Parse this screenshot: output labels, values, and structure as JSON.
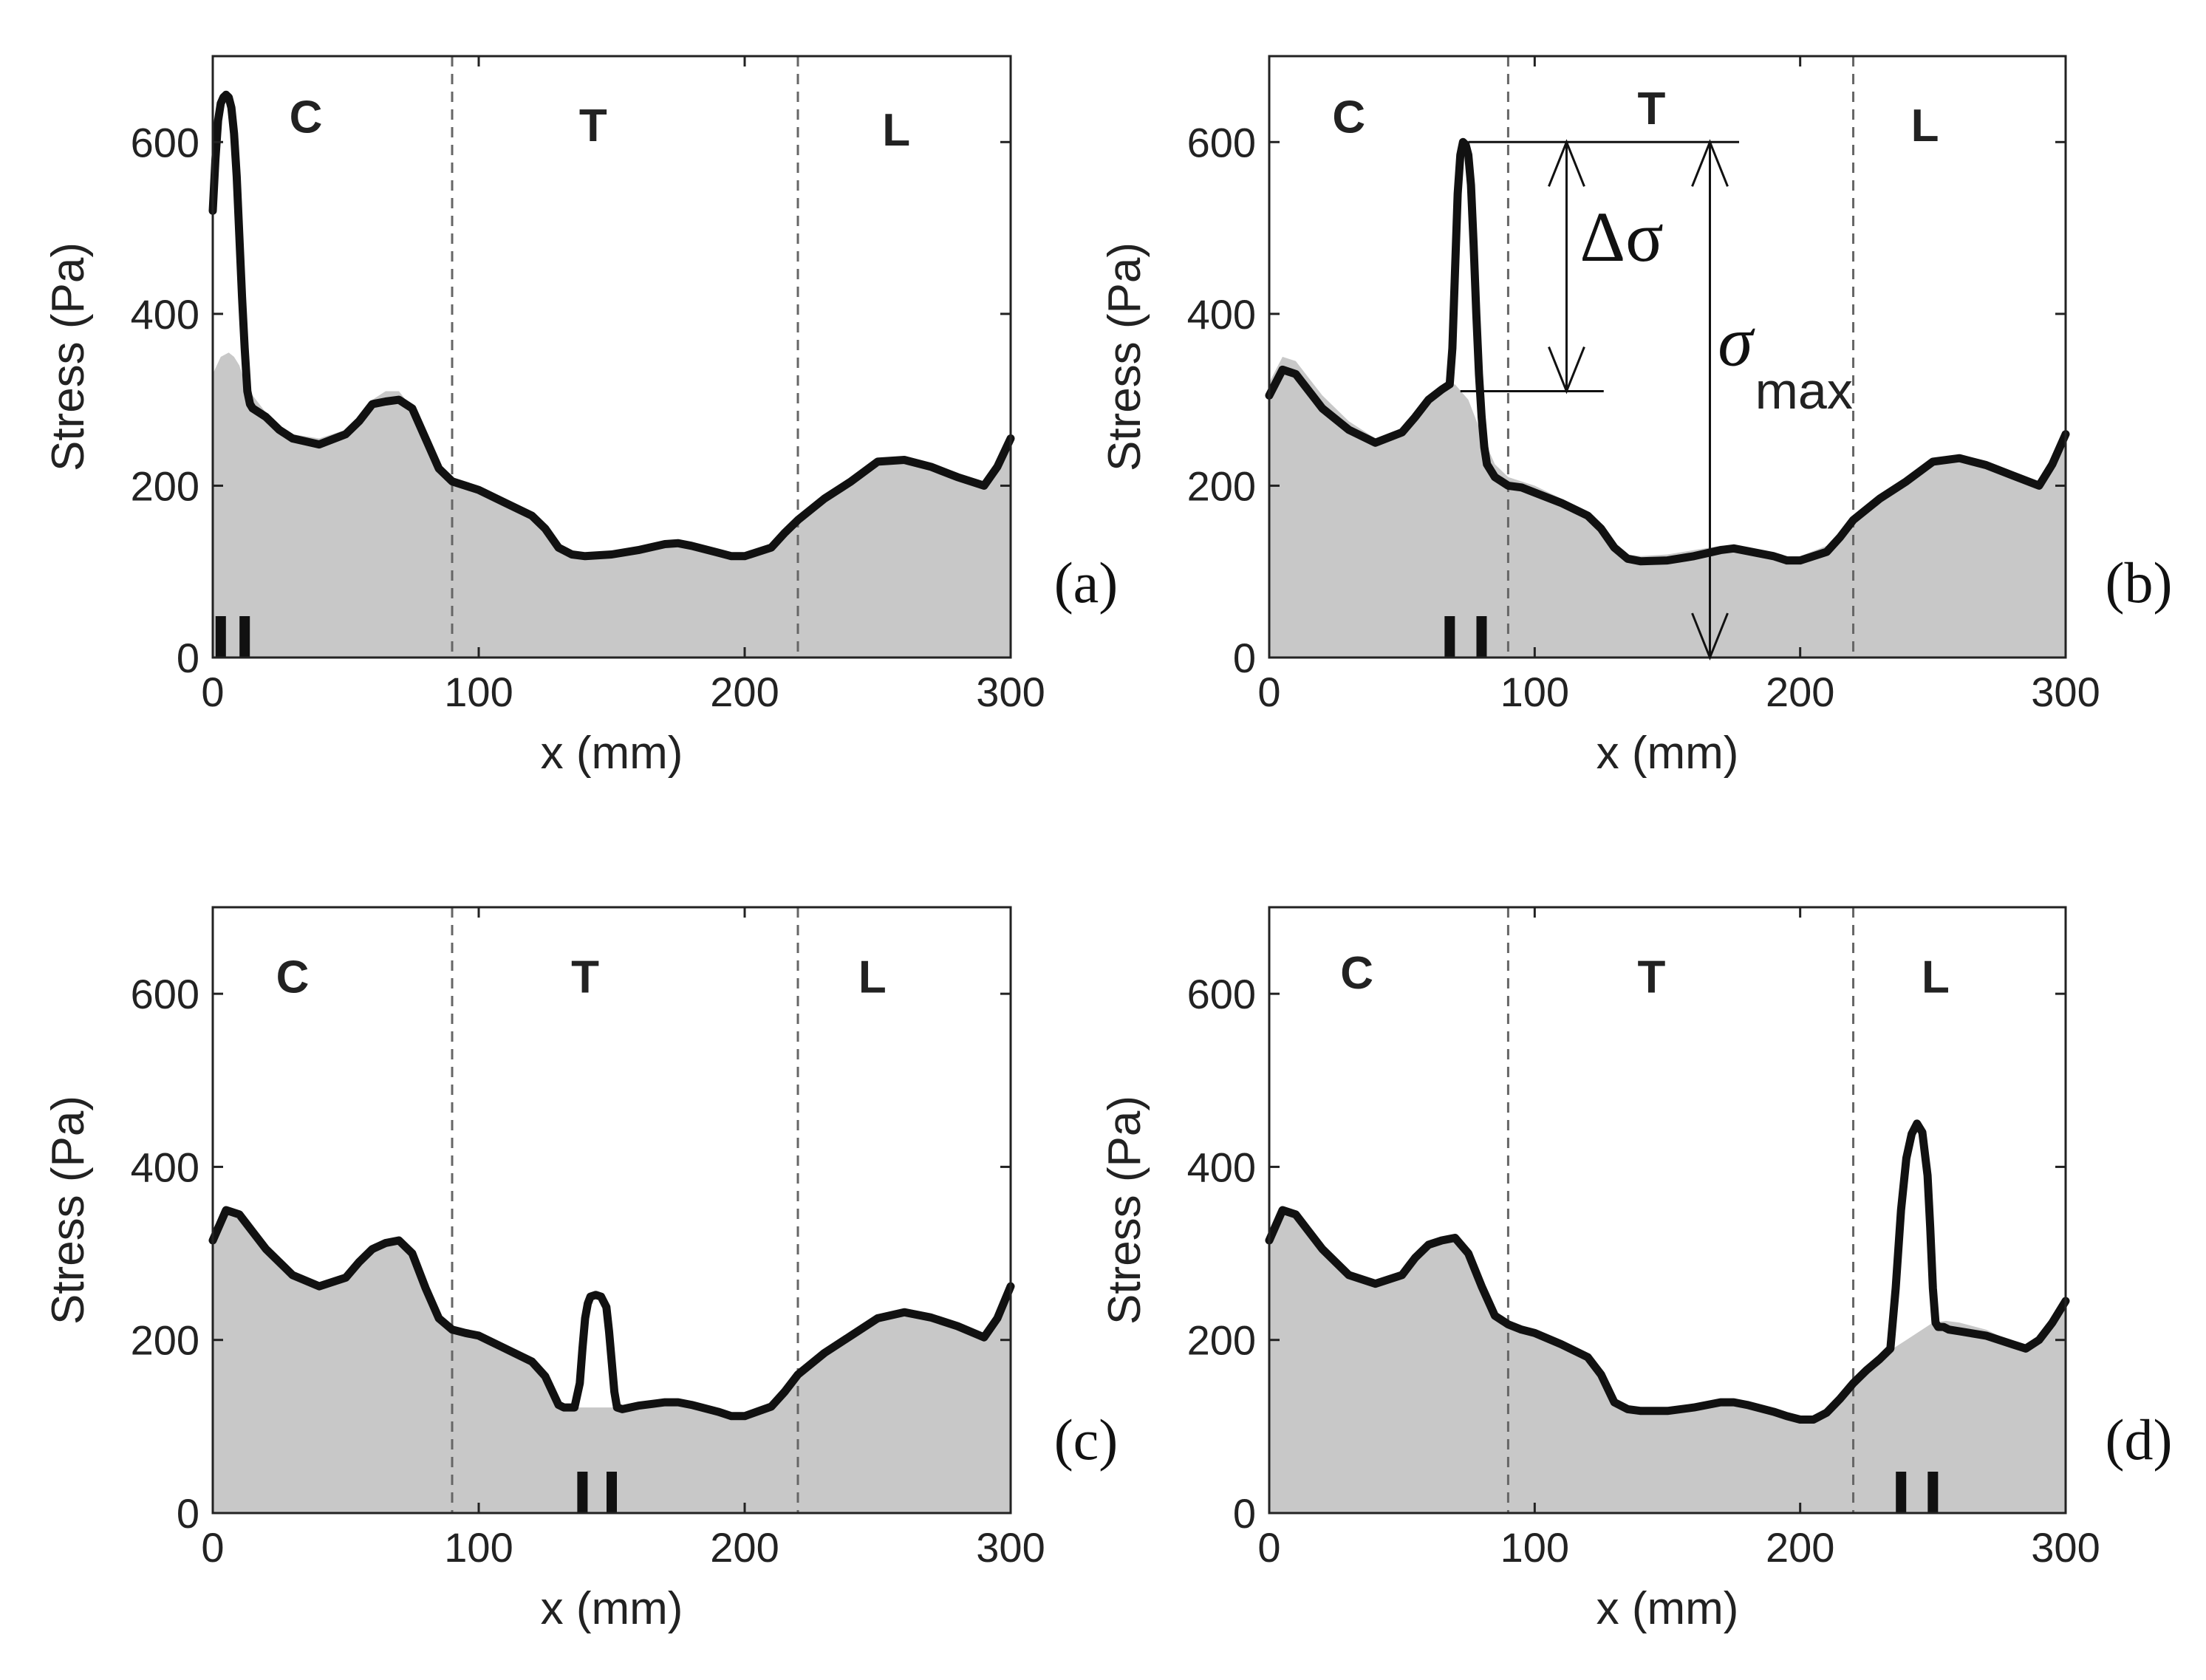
{
  "colors": {
    "curve": "#111111",
    "fill": "#c8c8c8",
    "divider": "#666666",
    "axes": "#222222"
  },
  "annotation": {
    "delta_symbol": "Δσ",
    "sigma_symbol": "σ",
    "sigma_subscript": "max",
    "delta_from": 310,
    "delta_to": 600,
    "sigma_from": 0,
    "sigma_to": 600
  },
  "chart_data": [
    {
      "type": "area",
      "panel_label": "(a)",
      "xlabel": "x (mm)",
      "ylabel": "Stress (Pa)",
      "xlim": [
        0,
        300
      ],
      "ylim": [
        0,
        700
      ],
      "xticks": [
        0,
        100,
        200,
        300
      ],
      "yticks": [
        0,
        200,
        400,
        600
      ],
      "dividers": [
        90,
        220
      ],
      "regions": [
        {
          "label": "C",
          "x": 35,
          "y": 630
        },
        {
          "label": "T",
          "x": 143,
          "y": 620
        },
        {
          "label": "L",
          "x": 257,
          "y": 615
        }
      ],
      "markers": [
        3,
        12
      ],
      "baseline": {
        "x": [
          0,
          3,
          6,
          8,
          10,
          12,
          15,
          20,
          25,
          30,
          40,
          50,
          55,
          60,
          65,
          70,
          75,
          80,
          85,
          90,
          95,
          100,
          110,
          120,
          125,
          130,
          135,
          140,
          150,
          160,
          170,
          175,
          180,
          190,
          195,
          200,
          210,
          215,
          220,
          230,
          240,
          250,
          260,
          270,
          280,
          290,
          295,
          300
        ],
        "y": [
          330,
          350,
          355,
          350,
          340,
          320,
          305,
          285,
          270,
          260,
          255,
          265,
          280,
          300,
          310,
          310,
          290,
          255,
          225,
          210,
          205,
          200,
          185,
          170,
          155,
          130,
          122,
          120,
          122,
          128,
          135,
          135,
          133,
          125,
          120,
          120,
          130,
          145,
          160,
          185,
          205,
          225,
          230,
          225,
          215,
          205,
          220,
          245
        ]
      },
      "curve": {
        "x": [
          0,
          1,
          2,
          3,
          4,
          5,
          6,
          7,
          8,
          9,
          10,
          11,
          12,
          13,
          14,
          15,
          20,
          25,
          30,
          40,
          50,
          55,
          60,
          65,
          70,
          75,
          80,
          85,
          90,
          95,
          100,
          110,
          120,
          125,
          130,
          135,
          140,
          150,
          160,
          170,
          175,
          180,
          190,
          195,
          200,
          210,
          215,
          220,
          230,
          240,
          250,
          260,
          270,
          280,
          290,
          295,
          300
        ],
        "y": [
          520,
          580,
          625,
          645,
          652,
          655,
          652,
          640,
          610,
          560,
          490,
          420,
          360,
          310,
          295,
          290,
          280,
          265,
          255,
          248,
          260,
          275,
          295,
          298,
          300,
          290,
          255,
          220,
          205,
          200,
          195,
          180,
          165,
          150,
          128,
          120,
          118,
          120,
          125,
          132,
          133,
          130,
          122,
          118,
          118,
          128,
          145,
          160,
          185,
          205,
          228,
          230,
          222,
          210,
          200,
          222,
          255
        ]
      }
    },
    {
      "type": "area",
      "panel_label": "(b)",
      "xlabel": "x (mm)",
      "ylabel": "Stress (Pa)",
      "xlim": [
        0,
        300
      ],
      "ylim": [
        0,
        700
      ],
      "xticks": [
        0,
        100,
        200,
        300
      ],
      "yticks": [
        0,
        200,
        400,
        600
      ],
      "dividers": [
        90,
        220
      ],
      "regions": [
        {
          "label": "C",
          "x": 30,
          "y": 630
        },
        {
          "label": "T",
          "x": 144,
          "y": 640
        },
        {
          "label": "L",
          "x": 247,
          "y": 620
        }
      ],
      "markers": [
        68,
        80
      ],
      "baseline": {
        "x": [
          0,
          5,
          10,
          15,
          20,
          30,
          40,
          50,
          55,
          60,
          65,
          70,
          75,
          80,
          85,
          90,
          95,
          100,
          110,
          120,
          125,
          130,
          135,
          140,
          150,
          160,
          170,
          175,
          180,
          190,
          195,
          200,
          210,
          215,
          220,
          230,
          240,
          250,
          260,
          270,
          280,
          290,
          295,
          300
        ],
        "y": [
          320,
          350,
          345,
          325,
          305,
          275,
          255,
          265,
          285,
          305,
          315,
          318,
          300,
          260,
          225,
          210,
          205,
          200,
          185,
          170,
          155,
          130,
          120,
          118,
          120,
          125,
          130,
          130,
          128,
          122,
          118,
          118,
          130,
          145,
          162,
          185,
          205,
          225,
          232,
          225,
          215,
          205,
          225,
          260
        ]
      },
      "curve": {
        "x": [
          0,
          5,
          10,
          15,
          20,
          30,
          40,
          50,
          55,
          60,
          65,
          68,
          69,
          70,
          71,
          72,
          73,
          74,
          75,
          76,
          77,
          78,
          79,
          80,
          81,
          82,
          85,
          90,
          95,
          100,
          110,
          120,
          125,
          130,
          135,
          140,
          150,
          160,
          170,
          175,
          180,
          190,
          195,
          200,
          210,
          215,
          220,
          230,
          240,
          250,
          260,
          270,
          280,
          290,
          295,
          300
        ],
        "y": [
          305,
          335,
          330,
          310,
          290,
          265,
          250,
          262,
          280,
          300,
          312,
          318,
          360,
          450,
          540,
          585,
          600,
          597,
          585,
          550,
          480,
          400,
          330,
          280,
          245,
          225,
          210,
          200,
          198,
          192,
          180,
          165,
          150,
          128,
          115,
          112,
          113,
          118,
          125,
          127,
          124,
          118,
          113,
          113,
          123,
          140,
          160,
          185,
          205,
          228,
          232,
          224,
          212,
          200,
          225,
          260
        ]
      }
    },
    {
      "type": "area",
      "panel_label": "(c)",
      "xlabel": "x (mm)",
      "ylabel": "Stress (Pa)",
      "xlim": [
        0,
        300
      ],
      "ylim": [
        0,
        700
      ],
      "xticks": [
        0,
        100,
        200,
        300
      ],
      "yticks": [
        0,
        200,
        400,
        600
      ],
      "dividers": [
        90,
        220
      ],
      "regions": [
        {
          "label": "C",
          "x": 30,
          "y": 620
        },
        {
          "label": "T",
          "x": 140,
          "y": 620
        },
        {
          "label": "L",
          "x": 248,
          "y": 620
        }
      ],
      "markers": [
        139,
        150
      ],
      "baseline": {
        "x": [
          0,
          5,
          10,
          15,
          20,
          30,
          40,
          50,
          55,
          60,
          65,
          70,
          75,
          80,
          85,
          90,
          95,
          100,
          110,
          120,
          125,
          130,
          135,
          140,
          150,
          160,
          170,
          175,
          180,
          190,
          195,
          200,
          210,
          215,
          220,
          230,
          240,
          250,
          260,
          270,
          280,
          290,
          295,
          300
        ],
        "y": [
          320,
          350,
          345,
          325,
          305,
          275,
          262,
          275,
          290,
          305,
          312,
          315,
          300,
          260,
          225,
          212,
          208,
          205,
          190,
          175,
          158,
          128,
          122,
          122,
          122,
          126,
          128,
          128,
          125,
          118,
          113,
          113,
          125,
          140,
          160,
          185,
          205,
          225,
          232,
          226,
          216,
          205,
          225,
          262
        ]
      },
      "curve": {
        "x": [
          0,
          5,
          10,
          15,
          20,
          30,
          40,
          50,
          55,
          60,
          65,
          70,
          75,
          80,
          85,
          90,
          95,
          100,
          110,
          120,
          125,
          130,
          132,
          136,
          138,
          139,
          140,
          141,
          142,
          144,
          146,
          148,
          149,
          150,
          151,
          152,
          154,
          160,
          170,
          175,
          180,
          190,
          195,
          200,
          210,
          215,
          220,
          230,
          240,
          250,
          260,
          270,
          280,
          290,
          295,
          300
        ],
        "y": [
          315,
          350,
          345,
          325,
          305,
          275,
          262,
          272,
          290,
          305,
          312,
          315,
          300,
          260,
          225,
          212,
          208,
          205,
          190,
          175,
          158,
          125,
          122,
          122,
          150,
          190,
          225,
          242,
          250,
          252,
          250,
          238,
          210,
          175,
          140,
          122,
          120,
          124,
          128,
          128,
          125,
          117,
          112,
          112,
          123,
          140,
          160,
          185,
          205,
          225,
          232,
          226,
          216,
          203,
          225,
          262
        ]
      }
    },
    {
      "type": "area",
      "panel_label": "(d)",
      "xlabel": "x (mm)",
      "ylabel": "Stress (Pa)",
      "xlim": [
        0,
        300
      ],
      "ylim": [
        0,
        700
      ],
      "xticks": [
        0,
        100,
        200,
        300
      ],
      "yticks": [
        0,
        200,
        400,
        600
      ],
      "dividers": [
        90,
        220
      ],
      "regions": [
        {
          "label": "C",
          "x": 33,
          "y": 625
        },
        {
          "label": "T",
          "x": 144,
          "y": 620
        },
        {
          "label": "L",
          "x": 251,
          "y": 620
        }
      ],
      "markers": [
        238,
        250
      ],
      "baseline": {
        "x": [
          0,
          5,
          10,
          15,
          20,
          30,
          40,
          50,
          55,
          60,
          65,
          70,
          75,
          80,
          85,
          90,
          95,
          100,
          110,
          120,
          125,
          130,
          135,
          140,
          150,
          160,
          170,
          175,
          180,
          190,
          195,
          200,
          205,
          210,
          215,
          220,
          225,
          230,
          235,
          240,
          245,
          250,
          255,
          260,
          270,
          280,
          285,
          290,
          295,
          300
        ],
        "y": [
          320,
          350,
          345,
          325,
          305,
          275,
          265,
          278,
          295,
          310,
          315,
          318,
          300,
          262,
          228,
          220,
          215,
          210,
          195,
          180,
          160,
          130,
          122,
          120,
          120,
          124,
          130,
          130,
          126,
          118,
          112,
          110,
          110,
          118,
          135,
          150,
          165,
          178,
          190,
          200,
          210,
          220,
          222,
          220,
          212,
          198,
          192,
          205,
          220,
          245
        ]
      },
      "curve": {
        "x": [
          0,
          5,
          10,
          15,
          20,
          30,
          40,
          50,
          55,
          60,
          65,
          70,
          75,
          80,
          85,
          90,
          95,
          100,
          110,
          120,
          125,
          130,
          135,
          140,
          150,
          160,
          170,
          175,
          180,
          190,
          195,
          200,
          205,
          210,
          215,
          220,
          225,
          230,
          234,
          236,
          238,
          240,
          242,
          244,
          246,
          248,
          249,
          250,
          251,
          252,
          254,
          256,
          260,
          270,
          280,
          285,
          290,
          295,
          300
        ],
        "y": [
          315,
          350,
          345,
          325,
          305,
          275,
          265,
          275,
          295,
          310,
          315,
          318,
          300,
          262,
          228,
          218,
          212,
          208,
          195,
          180,
          160,
          128,
          120,
          118,
          118,
          122,
          128,
          128,
          125,
          117,
          112,
          108,
          108,
          116,
          132,
          150,
          165,
          178,
          190,
          260,
          350,
          410,
          438,
          450,
          440,
          390,
          330,
          260,
          220,
          215,
          215,
          212,
          210,
          205,
          195,
          190,
          200,
          220,
          245
        ]
      }
    }
  ]
}
